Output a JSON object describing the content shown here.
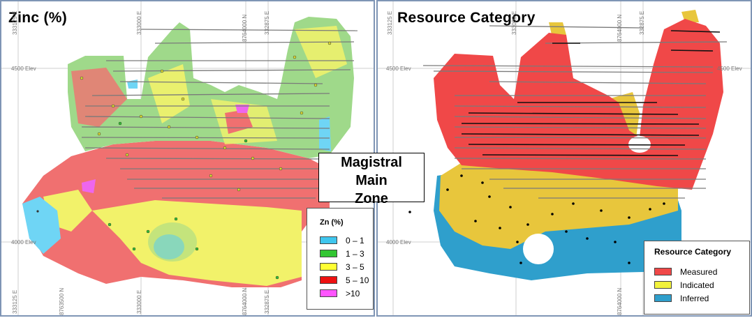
{
  "left_panel": {
    "title": "Zinc (%)",
    "legend": {
      "title": "Zn (%)",
      "items": [
        {
          "label": "0 – 1",
          "color": "#3fc6ee"
        },
        {
          "label": "1 – 3",
          "color": "#33c633"
        },
        {
          "label": "3 – 5",
          "color": "#ffff33"
        },
        {
          "label": "5 – 10",
          "color": "#ee1111"
        },
        {
          "label": ">10",
          "color": "#ff55ff"
        }
      ]
    }
  },
  "right_panel": {
    "title": "Resource Category",
    "legend": {
      "title": "Resource Category",
      "items": [
        {
          "label": "Measured",
          "color": "#f04848"
        },
        {
          "label": "Indicated",
          "color": "#f2f23c"
        },
        {
          "label": "Inferred",
          "color": "#2f9fcc"
        }
      ]
    }
  },
  "zone_label": [
    "Magistral",
    "Main",
    "Zone"
  ],
  "grid": {
    "easting_ticks": [
      "333125 E",
      "333000 E",
      "332875 E"
    ],
    "northing_ticks": [
      "8764000 N",
      "8763500 N"
    ],
    "elevation_ticks": [
      "4500 Elev",
      "4000 Elev"
    ]
  },
  "colors": {
    "zinc_body": [
      "#f07070",
      "#f2f26a",
      "#9fd98a",
      "#6fd5f5",
      "#ee66ee"
    ],
    "drillhole": "#7a7a7a",
    "panel_border": "#7f95b5"
  }
}
